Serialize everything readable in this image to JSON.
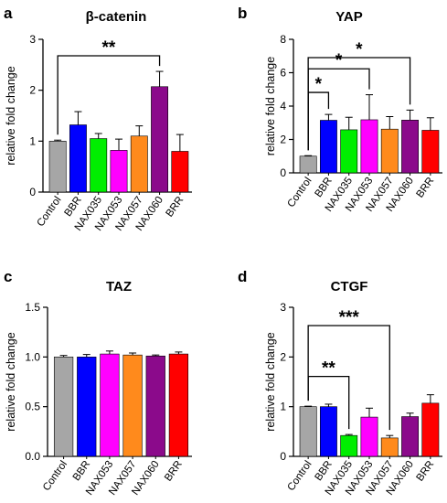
{
  "chart_data": [
    {
      "panel": "a",
      "type": "bar",
      "title": "β-catenin",
      "ylabel": "relative fold change",
      "xlabel": "",
      "ylim": [
        0,
        3
      ],
      "yticks": [
        0,
        1,
        2,
        3
      ],
      "categories": [
        "Control",
        "BBR",
        "NAX035",
        "NAX053",
        "NAX057",
        "NAX060",
        "BRR"
      ],
      "values": [
        1.0,
        1.32,
        1.05,
        0.82,
        1.1,
        2.07,
        0.8
      ],
      "errors": [
        0.02,
        0.26,
        0.1,
        0.22,
        0.2,
        0.3,
        0.33
      ],
      "significance": [
        {
          "from": "Control",
          "to": "NAX060",
          "label": "**"
        }
      ]
    },
    {
      "panel": "b",
      "type": "bar",
      "title": "YAP",
      "ylabel": "relative fold change",
      "xlabel": "",
      "ylim": [
        0,
        8
      ],
      "yticks": [
        0,
        2,
        4,
        6,
        8
      ],
      "categories": [
        "Control",
        "BBR",
        "NAX035",
        "NAX053",
        "NAX057",
        "NAX060",
        "BRR"
      ],
      "values": [
        1.0,
        3.15,
        2.58,
        3.18,
        2.62,
        3.16,
        2.55
      ],
      "errors": [
        0.03,
        0.35,
        0.75,
        1.5,
        0.75,
        0.6,
        0.75
      ],
      "significance": [
        {
          "from": "Control",
          "to": "BBR",
          "label": "*"
        },
        {
          "from": "Control",
          "to": "NAX053",
          "label": "*"
        },
        {
          "from": "Control",
          "to": "NAX060",
          "label": "*"
        }
      ]
    },
    {
      "panel": "c",
      "type": "bar",
      "title": "TAZ",
      "ylabel": "relative fold change",
      "xlabel": "",
      "ylim": [
        0,
        1.5
      ],
      "yticks": [
        0.0,
        0.5,
        1.0,
        1.5
      ],
      "categories": [
        "Control",
        "BBR",
        "NAX053",
        "NAX057",
        "NAX060",
        "BRR"
      ],
      "values": [
        1.0,
        1.0,
        1.03,
        1.02,
        1.01,
        1.03
      ],
      "errors": [
        0.015,
        0.025,
        0.03,
        0.02,
        0.01,
        0.02
      ],
      "significance": []
    },
    {
      "panel": "d",
      "type": "bar",
      "title": "CTGF",
      "ylabel": "relative fold change",
      "xlabel": "",
      "ylim": [
        0,
        3
      ],
      "yticks": [
        0,
        1,
        2,
        3
      ],
      "categories": [
        "Control",
        "BBR",
        "NAX035",
        "NAX053",
        "NAX057",
        "NAX060",
        "BRR"
      ],
      "values": [
        1.0,
        1.0,
        0.42,
        0.79,
        0.37,
        0.8,
        1.07
      ],
      "errors": [
        0.01,
        0.05,
        0.02,
        0.18,
        0.05,
        0.07,
        0.17
      ],
      "significance": [
        {
          "from": "Control",
          "to": "NAX035",
          "label": "**"
        },
        {
          "from": "Control",
          "to": "NAX057",
          "label": "***"
        }
      ]
    }
  ],
  "category_colors": {
    "Control": "#a6a6a6",
    "BBR": "#0000ff",
    "NAX035": "#00ee00",
    "NAX053": "#ff00ff",
    "NAX057": "#ff8a1c",
    "NAX060": "#8b0a8b",
    "BRR": "#ff0000"
  }
}
